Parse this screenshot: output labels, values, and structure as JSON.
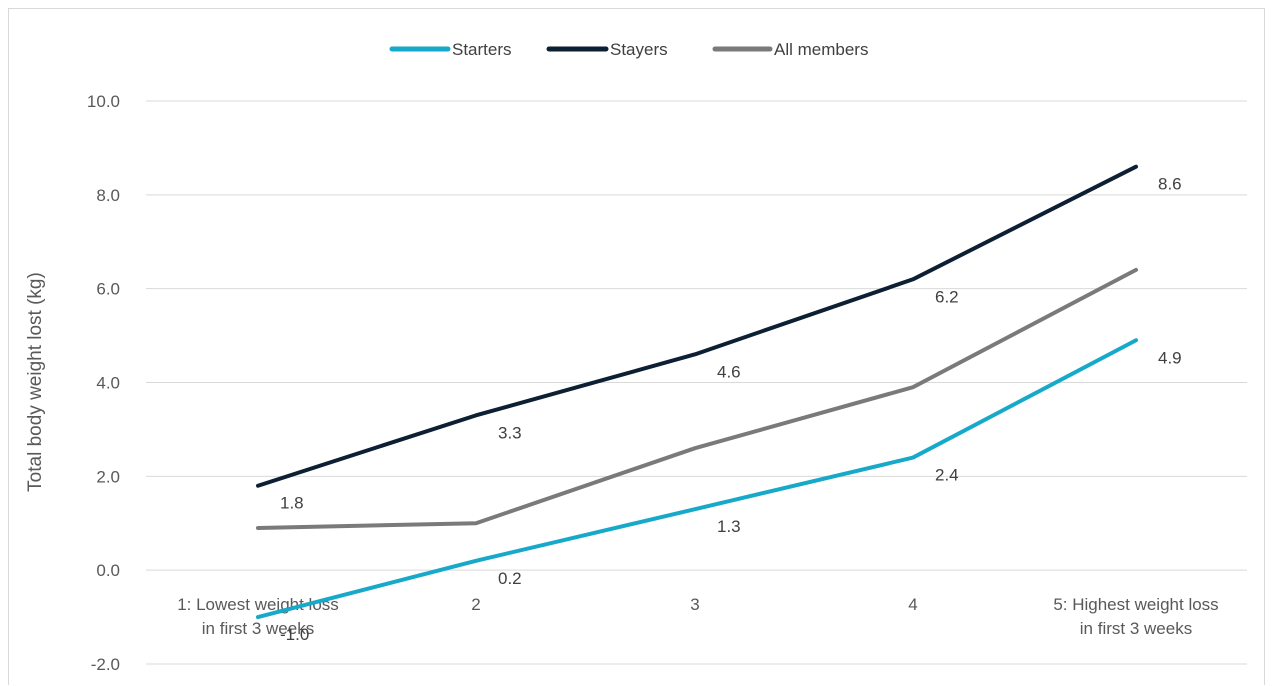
{
  "chart_data": {
    "type": "line",
    "title": "",
    "xlabel": "",
    "ylabel": "Total body weight lost (kg)",
    "ylim": [
      -2.0,
      10.0
    ],
    "yticks": [
      "-2.0",
      "0.0",
      "2.0",
      "4.0",
      "6.0",
      "8.0",
      "10.0"
    ],
    "grid": true,
    "legend_position": "top-center",
    "categories": [
      [
        "1: Lowest weight loss",
        "in first 3 weeks"
      ],
      [
        "2"
      ],
      [
        "3"
      ],
      [
        "4"
      ],
      [
        "5: Highest weight loss",
        "in first 3 weeks"
      ]
    ],
    "series": [
      {
        "name": "Starters",
        "color": "#17a9c9",
        "values": [
          -1.0,
          0.2,
          1.3,
          2.4,
          4.9
        ],
        "labels": [
          "-1.0",
          "0.2",
          "1.3",
          "2.4",
          "4.9"
        ]
      },
      {
        "name": "Stayers",
        "color": "#0d1f33",
        "values": [
          1.8,
          3.3,
          4.6,
          6.2,
          8.6
        ],
        "labels": [
          "1.8",
          "3.3",
          "4.6",
          "6.2",
          "8.6"
        ]
      },
      {
        "name": "All members",
        "color": "#7a7a7d",
        "values": [
          0.9,
          1.0,
          2.6,
          3.9,
          6.4
        ],
        "labels": []
      }
    ]
  }
}
